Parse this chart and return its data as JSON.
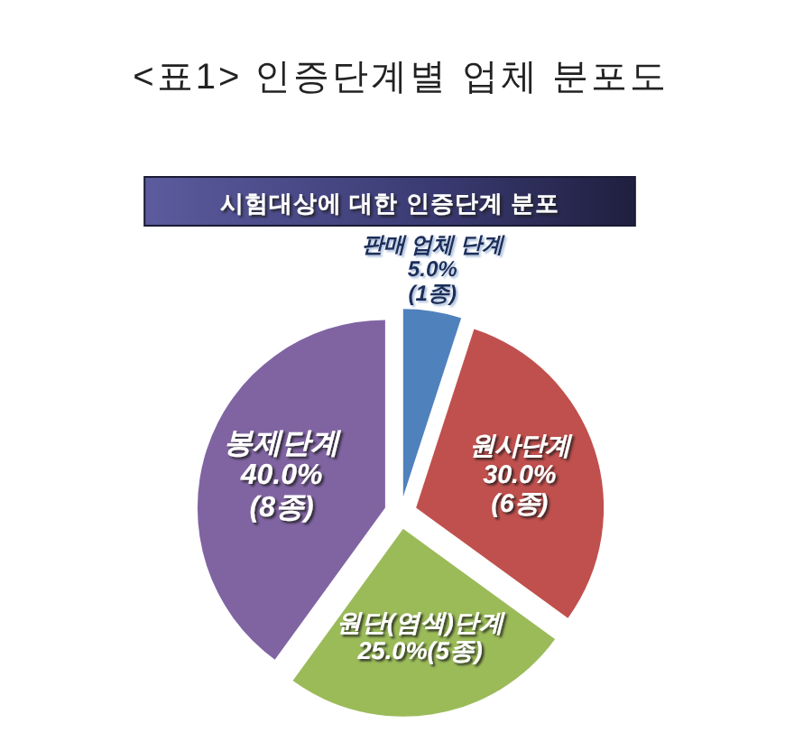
{
  "chart_data": {
    "type": "pie",
    "title": "<표1> 인증단계별 업체 분포도",
    "subtitle": "시험대상에 대한 인증단계 분포",
    "categories": [
      "판매 업체 단계",
      "원사단계",
      "원단(염색)단계",
      "봉제단계"
    ],
    "values": [
      5,
      30,
      25,
      40
    ],
    "colors": [
      "#4f81bd",
      "#c0504d",
      "#9bbb59",
      "#8064a2"
    ],
    "value_labels": [
      "5.0%\n(1종)",
      "30.0%\n(6종)",
      "25.0%(5종)",
      "40.0%\n(8종)"
    ]
  }
}
